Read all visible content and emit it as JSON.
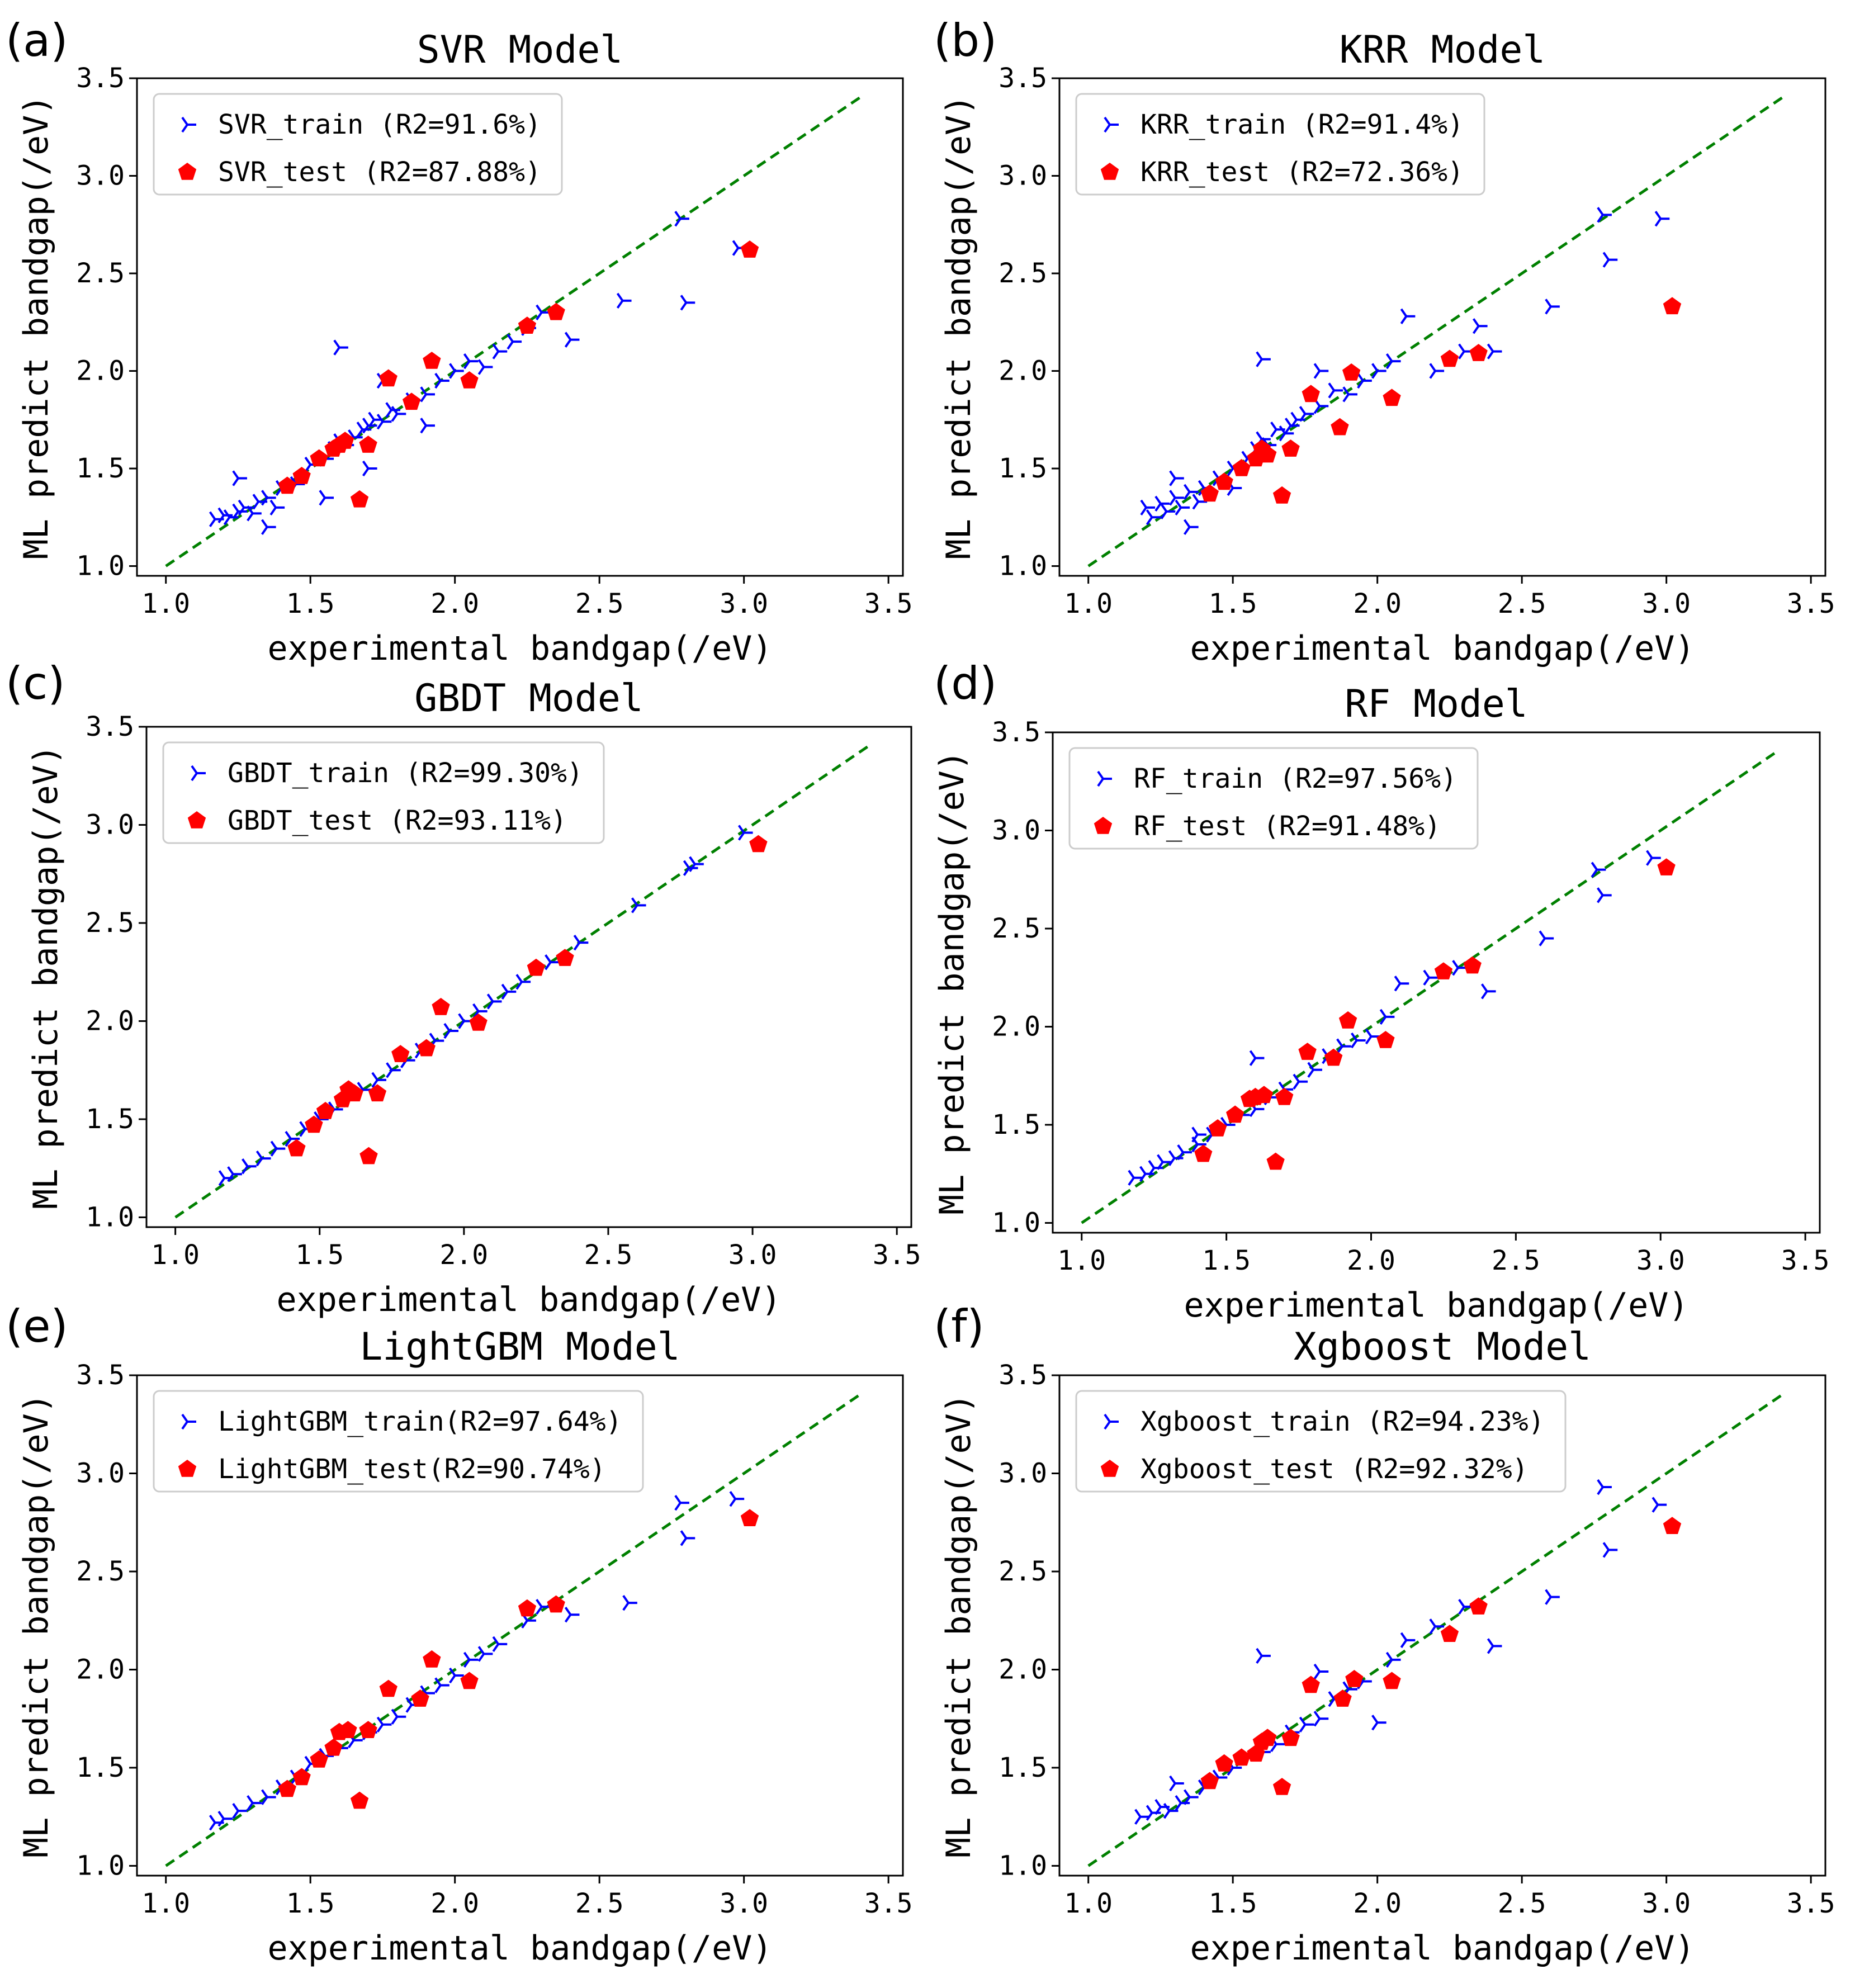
{
  "colors": {
    "train": "#0000ff",
    "test": "#ff0000",
    "identity_line": "#008000",
    "axis": "#000000",
    "legend_border": "#cccccc"
  },
  "chart_data": [
    {
      "panel": "(a)",
      "type": "scatter",
      "title": "SVR Model",
      "xlabel": "experimental bandgap(/eV)",
      "ylabel": "ML predict bandgap(/eV)",
      "xlim": [
        0.9,
        3.55
      ],
      "ylim": [
        0.95,
        3.5
      ],
      "xticks": [
        "1.0",
        "1.5",
        "2.0",
        "2.5",
        "3.0",
        "3.5"
      ],
      "yticks": [
        "1.0",
        "1.5",
        "2.0",
        "2.5",
        "3.0",
        "3.5"
      ],
      "legend_location": "upper-left",
      "series": [
        {
          "name": "SVR_train (R2=91.6%)",
          "role": "train",
          "x": [
            1.17,
            1.2,
            1.22,
            1.25,
            1.27,
            1.3,
            1.32,
            1.35,
            1.38,
            1.4,
            1.45,
            1.5,
            1.55,
            1.58,
            1.6,
            1.62,
            1.65,
            1.68,
            1.7,
            1.72,
            1.75,
            1.78,
            1.8,
            1.85,
            1.9,
            1.95,
            2.0,
            2.05,
            2.1,
            2.15,
            2.2,
            2.25,
            2.3,
            2.4,
            2.58,
            2.78,
            2.8,
            2.98,
            1.6,
            1.7,
            1.9,
            1.25,
            1.35,
            1.55,
            1.75
          ],
          "y": [
            1.24,
            1.26,
            1.25,
            1.28,
            1.3,
            1.27,
            1.33,
            1.35,
            1.3,
            1.4,
            1.42,
            1.52,
            1.55,
            1.6,
            1.64,
            1.62,
            1.66,
            1.7,
            1.72,
            1.75,
            1.74,
            1.8,
            1.78,
            1.85,
            1.88,
            1.95,
            2.0,
            2.05,
            2.02,
            2.1,
            2.15,
            2.22,
            2.3,
            2.16,
            2.36,
            2.78,
            2.35,
            2.63,
            2.12,
            1.5,
            1.72,
            1.45,
            1.2,
            1.35,
            1.95
          ]
        },
        {
          "name": "SVR_test (R2=87.88%)",
          "role": "test",
          "x": [
            1.42,
            1.47,
            1.53,
            1.58,
            1.6,
            1.62,
            1.67,
            1.7,
            1.77,
            1.85,
            1.92,
            2.05,
            2.25,
            2.35,
            3.02
          ],
          "y": [
            1.41,
            1.46,
            1.55,
            1.6,
            1.62,
            1.64,
            1.34,
            1.62,
            1.96,
            1.84,
            2.05,
            1.95,
            2.23,
            2.3,
            2.62
          ]
        }
      ]
    },
    {
      "panel": "(b)",
      "type": "scatter",
      "title": "KRR Model",
      "xlabel": "experimental bandgap(/eV)",
      "ylabel": "ML predict bandgap(/eV)",
      "xlim": [
        0.9,
        3.55
      ],
      "ylim": [
        0.95,
        3.5
      ],
      "xticks": [
        "1.0",
        "1.5",
        "2.0",
        "2.5",
        "3.0",
        "3.5"
      ],
      "yticks": [
        "1.0",
        "1.5",
        "2.0",
        "2.5",
        "3.0",
        "3.5"
      ],
      "legend_location": "upper-left",
      "series": [
        {
          "name": "KRR_train (R2=91.4%)",
          "role": "train",
          "x": [
            1.2,
            1.22,
            1.25,
            1.27,
            1.3,
            1.32,
            1.35,
            1.38,
            1.4,
            1.45,
            1.5,
            1.55,
            1.58,
            1.6,
            1.62,
            1.65,
            1.68,
            1.7,
            1.72,
            1.75,
            1.8,
            1.85,
            1.9,
            1.95,
            2.0,
            2.05,
            2.1,
            2.2,
            2.3,
            2.35,
            2.4,
            2.6,
            2.78,
            2.8,
            2.98,
            1.6,
            1.35,
            1.3,
            1.5,
            1.8
          ],
          "y": [
            1.3,
            1.25,
            1.32,
            1.28,
            1.35,
            1.3,
            1.38,
            1.33,
            1.4,
            1.45,
            1.5,
            1.55,
            1.6,
            1.65,
            1.62,
            1.7,
            1.68,
            1.72,
            1.75,
            1.78,
            1.82,
            1.9,
            1.88,
            1.95,
            2.0,
            2.05,
            2.28,
            2.0,
            2.1,
            2.23,
            2.1,
            2.33,
            2.8,
            2.57,
            2.78,
            2.06,
            1.2,
            1.45,
            1.4,
            2.0
          ]
        },
        {
          "name": "KRR_test (R2=72.36%)",
          "role": "test",
          "x": [
            1.42,
            1.47,
            1.53,
            1.58,
            1.6,
            1.62,
            1.67,
            1.7,
            1.77,
            1.87,
            1.91,
            2.05,
            2.25,
            2.35,
            3.02
          ],
          "y": [
            1.37,
            1.43,
            1.5,
            1.55,
            1.6,
            1.57,
            1.36,
            1.6,
            1.88,
            1.71,
            1.99,
            1.86,
            2.06,
            2.09,
            2.33
          ]
        }
      ]
    },
    {
      "panel": "(c)",
      "type": "scatter",
      "title": "GBDT Model",
      "xlabel": "experimental bandgap(/eV)",
      "ylabel": "ML predict bandgap(/eV)",
      "xlim": [
        0.9,
        3.55
      ],
      "ylim": [
        0.95,
        3.5
      ],
      "xticks": [
        "1.0",
        "1.5",
        "2.0",
        "2.5",
        "3.0",
        "3.5"
      ],
      "yticks": [
        "1.0",
        "1.5",
        "2.0",
        "2.5",
        "3.0",
        "3.5"
      ],
      "legend_location": "upper-left",
      "series": [
        {
          "name": "GBDT_train (R2=99.30%)",
          "role": "train",
          "x": [
            1.17,
            1.2,
            1.25,
            1.3,
            1.35,
            1.4,
            1.45,
            1.5,
            1.55,
            1.6,
            1.65,
            1.7,
            1.75,
            1.8,
            1.85,
            1.9,
            1.95,
            2.0,
            2.05,
            2.1,
            2.15,
            2.2,
            2.3,
            2.4,
            2.6,
            2.78,
            2.8,
            2.97
          ],
          "y": [
            1.2,
            1.22,
            1.26,
            1.3,
            1.35,
            1.4,
            1.45,
            1.5,
            1.55,
            1.6,
            1.65,
            1.7,
            1.75,
            1.8,
            1.85,
            1.9,
            1.95,
            2.0,
            2.05,
            2.1,
            2.15,
            2.2,
            2.3,
            2.4,
            2.59,
            2.78,
            2.8,
            2.96
          ]
        },
        {
          "name": "GBDT_test (R2=93.11%)",
          "role": "test",
          "x": [
            1.42,
            1.48,
            1.52,
            1.58,
            1.6,
            1.62,
            1.67,
            1.7,
            1.78,
            1.87,
            1.92,
            2.05,
            2.25,
            2.35,
            3.02
          ],
          "y": [
            1.35,
            1.47,
            1.54,
            1.6,
            1.65,
            1.63,
            1.31,
            1.63,
            1.83,
            1.86,
            2.07,
            1.99,
            2.27,
            2.32,
            2.9
          ]
        }
      ]
    },
    {
      "panel": "(d)",
      "type": "scatter",
      "title": "RF Model",
      "xlabel": "experimental bandgap(/eV)",
      "ylabel": "ML predict bandgap(/eV)",
      "xlim": [
        0.9,
        3.55
      ],
      "ylim": [
        0.95,
        3.5
      ],
      "xticks": [
        "1.0",
        "1.5",
        "2.0",
        "2.5",
        "3.0",
        "3.5"
      ],
      "yticks": [
        "1.0",
        "1.5",
        "2.0",
        "2.5",
        "3.0",
        "3.5"
      ],
      "legend_location": "upper-left",
      "series": [
        {
          "name": "RF_train (R2=97.56%)",
          "role": "train",
          "x": [
            1.18,
            1.22,
            1.25,
            1.28,
            1.32,
            1.35,
            1.4,
            1.45,
            1.5,
            1.55,
            1.6,
            1.65,
            1.7,
            1.75,
            1.8,
            1.85,
            1.9,
            1.95,
            2.0,
            2.05,
            2.1,
            2.2,
            2.3,
            2.4,
            2.6,
            2.78,
            2.8,
            2.97,
            1.6,
            1.4
          ],
          "y": [
            1.23,
            1.25,
            1.28,
            1.31,
            1.33,
            1.36,
            1.4,
            1.45,
            1.5,
            1.55,
            1.58,
            1.64,
            1.68,
            1.72,
            1.78,
            1.85,
            1.9,
            1.93,
            1.95,
            2.05,
            2.22,
            2.25,
            2.3,
            2.18,
            2.45,
            2.8,
            2.67,
            2.86,
            1.84,
            1.45
          ]
        },
        {
          "name": "RF_test (R2=91.48%)",
          "role": "test",
          "x": [
            1.42,
            1.47,
            1.53,
            1.58,
            1.6,
            1.63,
            1.67,
            1.7,
            1.78,
            1.87,
            1.92,
            2.05,
            2.25,
            2.35,
            3.02
          ],
          "y": [
            1.35,
            1.48,
            1.55,
            1.63,
            1.64,
            1.65,
            1.31,
            1.64,
            1.87,
            1.84,
            2.03,
            1.93,
            2.28,
            2.31,
            2.81
          ]
        }
      ]
    },
    {
      "panel": "(e)",
      "type": "scatter",
      "title": "LightGBM Model",
      "xlabel": "experimental bandgap(/eV)",
      "ylabel": "ML predict bandgap(/eV)",
      "xlim": [
        0.9,
        3.55
      ],
      "ylim": [
        0.95,
        3.5
      ],
      "xticks": [
        "1.0",
        "1.5",
        "2.0",
        "2.5",
        "3.0",
        "3.5"
      ],
      "yticks": [
        "1.0",
        "1.5",
        "2.0",
        "2.5",
        "3.0",
        "3.5"
      ],
      "legend_location": "upper-left",
      "series": [
        {
          "name": "LightGBM_train(R2=97.64%)",
          "role": "train",
          "x": [
            1.17,
            1.2,
            1.25,
            1.3,
            1.35,
            1.4,
            1.45,
            1.5,
            1.55,
            1.6,
            1.65,
            1.7,
            1.75,
            1.8,
            1.85,
            1.9,
            1.95,
            2.0,
            2.05,
            2.1,
            2.15,
            2.25,
            2.3,
            2.4,
            2.6,
            2.78,
            2.8,
            2.97
          ],
          "y": [
            1.22,
            1.24,
            1.28,
            1.32,
            1.35,
            1.4,
            1.45,
            1.52,
            1.56,
            1.6,
            1.64,
            1.68,
            1.72,
            1.76,
            1.82,
            1.88,
            1.92,
            1.97,
            2.05,
            2.08,
            2.13,
            2.25,
            2.32,
            2.28,
            2.34,
            2.85,
            2.67,
            2.87
          ]
        },
        {
          "name": "LightGBM_test(R2=90.74%)",
          "role": "test",
          "x": [
            1.42,
            1.47,
            1.53,
            1.58,
            1.6,
            1.63,
            1.67,
            1.7,
            1.77,
            1.88,
            1.92,
            2.05,
            2.25,
            2.35,
            3.02
          ],
          "y": [
            1.39,
            1.45,
            1.54,
            1.6,
            1.68,
            1.69,
            1.33,
            1.69,
            1.9,
            1.85,
            2.05,
            1.94,
            2.31,
            2.33,
            2.77
          ]
        }
      ]
    },
    {
      "panel": "(f)",
      "type": "scatter",
      "title": "Xgboost Model",
      "xlabel": "experimental bandgap(/eV)",
      "ylabel": "ML predict bandgap(/eV)",
      "xlim": [
        0.9,
        3.55
      ],
      "ylim": [
        0.95,
        3.5
      ],
      "xticks": [
        "1.0",
        "1.5",
        "2.0",
        "2.5",
        "3.0",
        "3.5"
      ],
      "yticks": [
        "1.0",
        "1.5",
        "2.0",
        "2.5",
        "3.0",
        "3.5"
      ],
      "legend_location": "upper-left",
      "series": [
        {
          "name": "Xgboost_train (R2=94.23%)",
          "role": "train",
          "x": [
            1.18,
            1.22,
            1.25,
            1.28,
            1.32,
            1.35,
            1.4,
            1.45,
            1.5,
            1.55,
            1.6,
            1.65,
            1.7,
            1.75,
            1.8,
            1.85,
            1.9,
            1.95,
            2.0,
            2.05,
            2.1,
            2.2,
            2.3,
            2.4,
            2.6,
            2.78,
            2.8,
            2.97,
            1.6,
            1.8,
            1.3
          ],
          "y": [
            1.25,
            1.27,
            1.3,
            1.28,
            1.32,
            1.35,
            1.4,
            1.45,
            1.5,
            1.55,
            1.58,
            1.62,
            1.68,
            1.72,
            1.75,
            1.85,
            1.9,
            1.94,
            1.73,
            2.05,
            2.15,
            2.22,
            2.32,
            2.12,
            2.37,
            2.93,
            2.61,
            2.84,
            2.07,
            1.99,
            1.42
          ]
        },
        {
          "name": "Xgboost_test (R2=92.32%)",
          "role": "test",
          "x": [
            1.42,
            1.47,
            1.53,
            1.58,
            1.6,
            1.62,
            1.67,
            1.7,
            1.77,
            1.88,
            1.92,
            2.05,
            2.25,
            2.35,
            3.02
          ],
          "y": [
            1.43,
            1.52,
            1.55,
            1.57,
            1.63,
            1.65,
            1.4,
            1.65,
            1.92,
            1.85,
            1.95,
            1.94,
            2.18,
            2.32,
            2.73
          ]
        }
      ]
    }
  ]
}
